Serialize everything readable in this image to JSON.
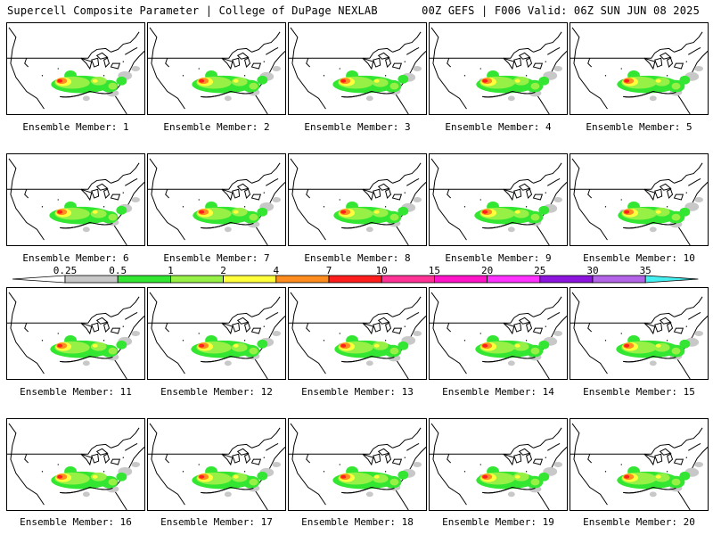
{
  "header": {
    "left": "Supercell Composite Parameter | College of DuPage NEXLAB",
    "right": "00Z GEFS | F006 Valid: 06Z SUN JUN 08 2025"
  },
  "members": [
    "Ensemble Member: 1",
    "Ensemble Member: 2",
    "Ensemble Member: 3",
    "Ensemble Member: 4",
    "Ensemble Member: 5",
    "Ensemble Member: 6",
    "Ensemble Member: 7",
    "Ensemble Member: 8",
    "Ensemble Member: 9",
    "Ensemble Member: 10",
    "Ensemble Member: 11",
    "Ensemble Member: 12",
    "Ensemble Member: 13",
    "Ensemble Member: 14",
    "Ensemble Member: 15",
    "Ensemble Member: 16",
    "Ensemble Member: 17",
    "Ensemble Member: 18",
    "Ensemble Member: 19",
    "Ensemble Member: 20"
  ],
  "colorbar": {
    "ticks": [
      "0.25",
      "0.5",
      "1",
      "2",
      "4",
      "7",
      "10",
      "15",
      "20",
      "25",
      "30",
      "35"
    ],
    "colors": [
      "#c8c8c8",
      "#32e632",
      "#96f046",
      "#ffff3c",
      "#ff8c1e",
      "#ff1e1e",
      "#ff3296",
      "#ff14c8",
      "#ff32ff",
      "#8c14dc",
      "#b464e6",
      "#46f0f0"
    ]
  }
}
